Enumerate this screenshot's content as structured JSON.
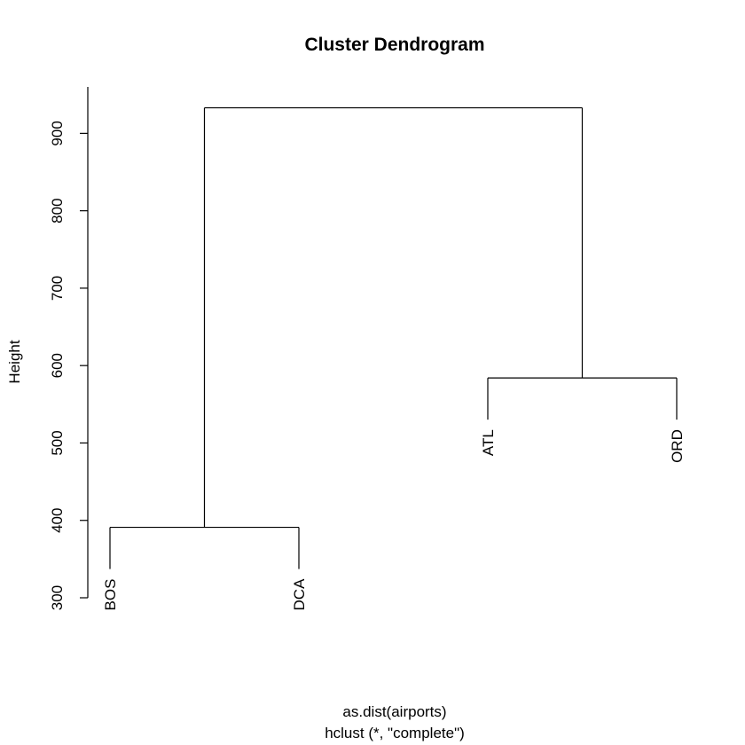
{
  "chart_data": {
    "type": "dendrogram",
    "title": "Cluster Dendrogram",
    "ylabel": "Height",
    "xlabel": "as.dist(airports)",
    "sub": "hclust (*, \"complete\")",
    "ylim": [
      300,
      960
    ],
    "yticks": [
      300,
      400,
      500,
      600,
      700,
      800,
      900
    ],
    "leaves": [
      {
        "label": "BOS",
        "height": 391
      },
      {
        "label": "DCA",
        "height": 391
      },
      {
        "label": "ATL",
        "height": 584
      },
      {
        "label": "ORD",
        "height": 584
      }
    ],
    "merges": [
      {
        "left": "BOS",
        "right": "DCA",
        "height": 391
      },
      {
        "left": "ATL",
        "right": "ORD",
        "height": 584
      },
      {
        "left": "BOS+DCA",
        "right": "ATL+ORD",
        "height": 933
      }
    ]
  }
}
